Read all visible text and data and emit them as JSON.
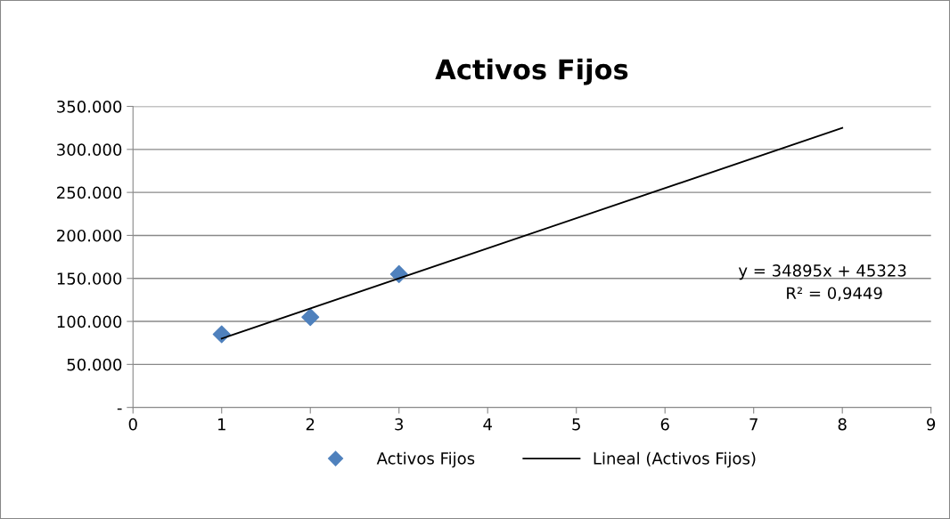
{
  "chart_data": {
    "type": "scatter",
    "title": "Activos Fijos",
    "xlim": [
      0,
      9
    ],
    "xticks": [
      0,
      1,
      2,
      3,
      4,
      5,
      6,
      7,
      8,
      9
    ],
    "ylim": [
      0,
      350000
    ],
    "yticks": [
      {
        "value": 0,
        "label": "-"
      },
      {
        "value": 50000,
        "label": "50.000"
      },
      {
        "value": 100000,
        "label": "100.000"
      },
      {
        "value": 150000,
        "label": "150.000"
      },
      {
        "value": 200000,
        "label": "200.000"
      },
      {
        "value": 250000,
        "label": "250.000"
      },
      {
        "value": 300000,
        "label": "300.000"
      },
      {
        "value": 350000,
        "label": "350.000"
      }
    ],
    "grid": "y",
    "legend": "bottom",
    "series": [
      {
        "name": "Activos Fijos",
        "color": "#4f81bd",
        "marker": "diamond",
        "x": [
          1,
          2,
          3
        ],
        "values": [
          85000,
          105000,
          155000
        ]
      },
      {
        "name": "Lineal (Activos Fijos)",
        "type": "line",
        "color": "#000000",
        "marker": "none",
        "line_style": "solid",
        "x": [
          1,
          8
        ],
        "values": [
          80000,
          325000
        ]
      }
    ],
    "annotations": [
      "y = 34895x + 45323",
      "R² = 0,9449"
    ]
  }
}
